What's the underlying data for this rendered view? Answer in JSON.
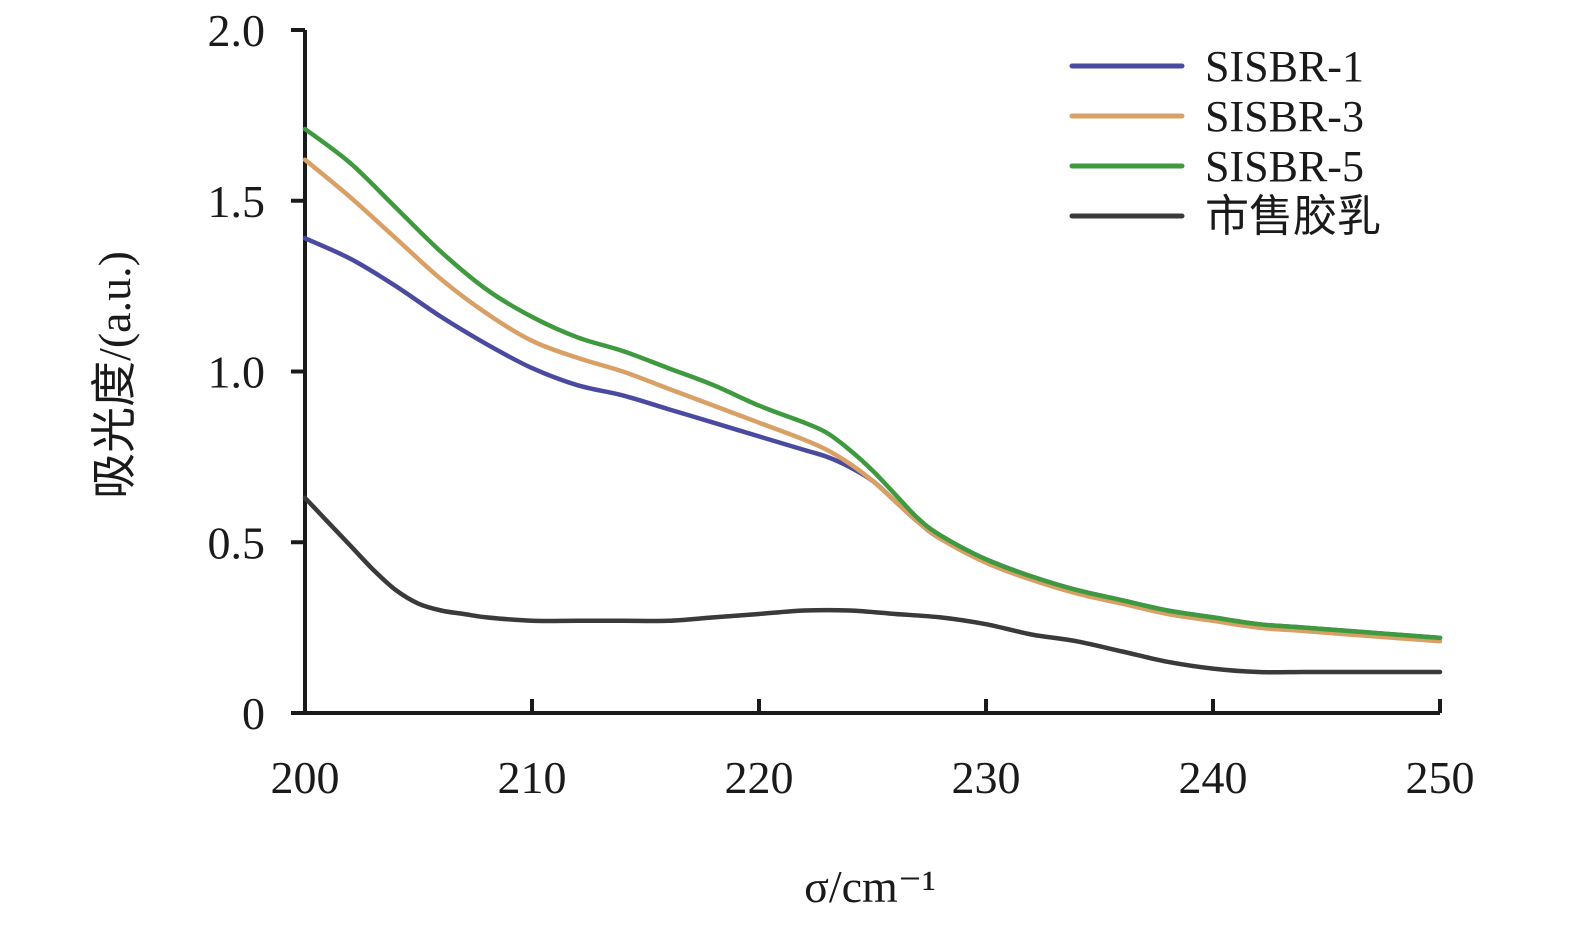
{
  "chart_data": {
    "type": "line",
    "title": "",
    "xlabel": "σ/cm⁻¹",
    "ylabel": "吸光度/(a.u.)",
    "xlim": [
      200,
      250
    ],
    "ylim": [
      0,
      2.0
    ],
    "x_ticks": [
      200,
      210,
      220,
      230,
      240,
      250
    ],
    "y_ticks": [
      0,
      0.5,
      1.0,
      1.5,
      2.0
    ],
    "x_tick_labels": [
      "200",
      "210",
      "220",
      "230",
      "240",
      "250"
    ],
    "y_tick_labels": [
      "0",
      "0.5",
      "1.0",
      "1.5",
      "2.0"
    ],
    "grid": false,
    "legend_position": "top-right",
    "series": [
      {
        "name": "SISBR-1",
        "color": "#4a4aa0",
        "x": [
          200,
          202,
          204,
          206,
          208,
          210,
          212,
          214,
          216,
          218,
          220,
          222,
          223,
          224,
          225,
          226,
          227,
          228,
          230,
          232,
          234,
          236,
          238,
          240,
          242,
          244,
          246,
          248,
          250
        ],
        "y": [
          1.39,
          1.33,
          1.25,
          1.16,
          1.08,
          1.01,
          0.96,
          0.93,
          0.89,
          0.85,
          0.81,
          0.77,
          0.75,
          0.72,
          0.68,
          0.62,
          0.56,
          0.51,
          0.45,
          0.4,
          0.36,
          0.33,
          0.3,
          0.28,
          0.26,
          0.25,
          0.24,
          0.23,
          0.22
        ]
      },
      {
        "name": "SISBR-3",
        "color": "#d9a066",
        "x": [
          200,
          202,
          204,
          206,
          208,
          210,
          212,
          214,
          216,
          218,
          220,
          222,
          223,
          224,
          225,
          226,
          227,
          228,
          230,
          232,
          234,
          236,
          238,
          240,
          242,
          244,
          246,
          248,
          250
        ],
        "y": [
          1.62,
          1.51,
          1.39,
          1.27,
          1.17,
          1.09,
          1.04,
          1.0,
          0.95,
          0.9,
          0.85,
          0.8,
          0.77,
          0.73,
          0.68,
          0.62,
          0.56,
          0.51,
          0.44,
          0.39,
          0.35,
          0.32,
          0.29,
          0.27,
          0.25,
          0.24,
          0.23,
          0.22,
          0.21
        ]
      },
      {
        "name": "SISBR-5",
        "color": "#3f9a3f",
        "x": [
          200,
          202,
          204,
          206,
          208,
          210,
          212,
          214,
          216,
          218,
          220,
          222,
          223,
          224,
          225,
          226,
          227,
          228,
          230,
          232,
          234,
          236,
          238,
          240,
          242,
          244,
          246,
          248,
          250
        ],
        "y": [
          1.71,
          1.61,
          1.48,
          1.35,
          1.24,
          1.16,
          1.1,
          1.06,
          1.01,
          0.96,
          0.9,
          0.85,
          0.82,
          0.77,
          0.71,
          0.64,
          0.57,
          0.52,
          0.45,
          0.4,
          0.36,
          0.33,
          0.3,
          0.28,
          0.26,
          0.25,
          0.24,
          0.23,
          0.22
        ]
      },
      {
        "name": "市售胶乳",
        "color": "#3a3a3a",
        "x": [
          200,
          201,
          202,
          203,
          204,
          205,
          206,
          207,
          208,
          210,
          212,
          214,
          216,
          218,
          220,
          222,
          224,
          226,
          228,
          230,
          232,
          234,
          236,
          238,
          240,
          242,
          244,
          246,
          248,
          250
        ],
        "y": [
          0.63,
          0.56,
          0.49,
          0.42,
          0.36,
          0.32,
          0.3,
          0.29,
          0.28,
          0.27,
          0.27,
          0.27,
          0.27,
          0.28,
          0.29,
          0.3,
          0.3,
          0.29,
          0.28,
          0.26,
          0.23,
          0.21,
          0.18,
          0.15,
          0.13,
          0.12,
          0.12,
          0.12,
          0.12,
          0.12
        ]
      }
    ]
  }
}
